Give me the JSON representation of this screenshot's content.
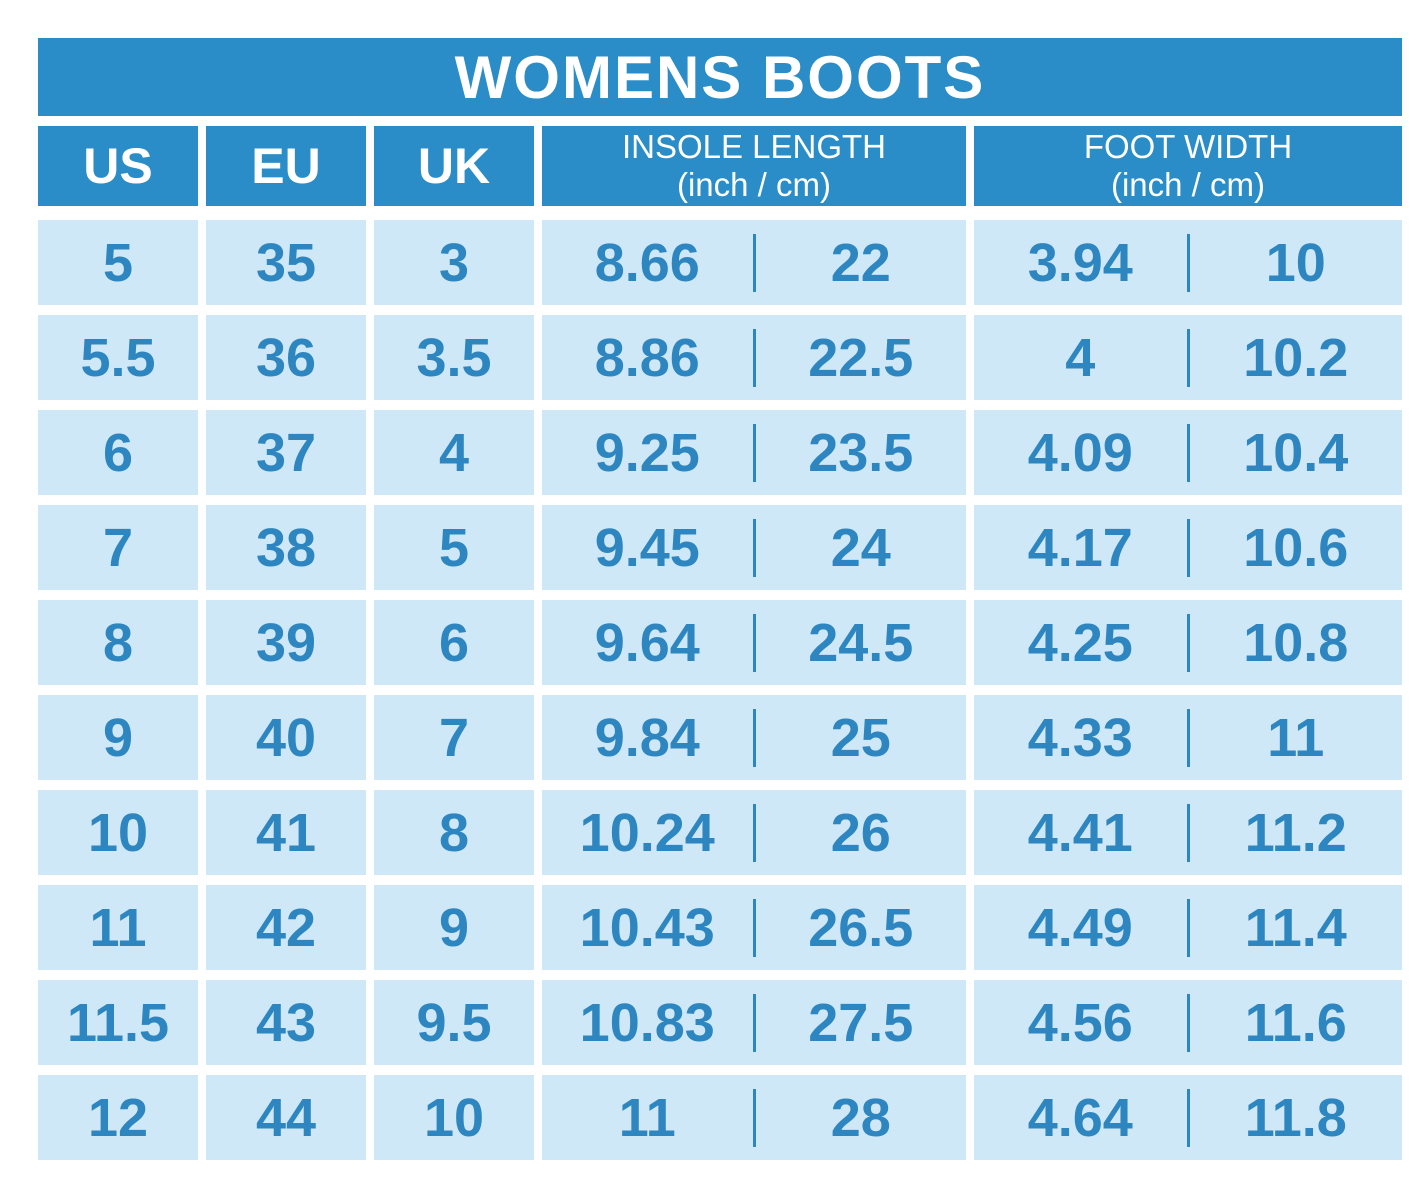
{
  "title": "WOMENS BOOTS",
  "colors": {
    "header_bg": "#2b8dc7",
    "cell_bg": "#cfe8f7",
    "value_text": "#2e86c1",
    "header_text": "#ffffff",
    "page_bg": "#ffffff"
  },
  "table": {
    "headers": {
      "us": "US",
      "eu": "EU",
      "uk": "UK",
      "insole_label": "INSOLE LENGTH",
      "insole_sub": "(inch / cm)",
      "foot_label": "FOOT WIDTH",
      "foot_sub": "(inch / cm)"
    },
    "rows": [
      {
        "us": "5",
        "eu": "35",
        "uk": "3",
        "insole_inch": "8.66",
        "insole_cm": "22",
        "width_inch": "3.94",
        "width_cm": "10"
      },
      {
        "us": "5.5",
        "eu": "36",
        "uk": "3.5",
        "insole_inch": "8.86",
        "insole_cm": "22.5",
        "width_inch": "4",
        "width_cm": "10.2"
      },
      {
        "us": "6",
        "eu": "37",
        "uk": "4",
        "insole_inch": "9.25",
        "insole_cm": "23.5",
        "width_inch": "4.09",
        "width_cm": "10.4"
      },
      {
        "us": "7",
        "eu": "38",
        "uk": "5",
        "insole_inch": "9.45",
        "insole_cm": "24",
        "width_inch": "4.17",
        "width_cm": "10.6"
      },
      {
        "us": "8",
        "eu": "39",
        "uk": "6",
        "insole_inch": "9.64",
        "insole_cm": "24.5",
        "width_inch": "4.25",
        "width_cm": "10.8"
      },
      {
        "us": "9",
        "eu": "40",
        "uk": "7",
        "insole_inch": "9.84",
        "insole_cm": "25",
        "width_inch": "4.33",
        "width_cm": "11"
      },
      {
        "us": "10",
        "eu": "41",
        "uk": "8",
        "insole_inch": "10.24",
        "insole_cm": "26",
        "width_inch": "4.41",
        "width_cm": "11.2"
      },
      {
        "us": "11",
        "eu": "42",
        "uk": "9",
        "insole_inch": "10.43",
        "insole_cm": "26.5",
        "width_inch": "4.49",
        "width_cm": "11.4"
      },
      {
        "us": "11.5",
        "eu": "43",
        "uk": "9.5",
        "insole_inch": "10.83",
        "insole_cm": "27.5",
        "width_inch": "4.56",
        "width_cm": "11.6"
      },
      {
        "us": "12",
        "eu": "44",
        "uk": "10",
        "insole_inch": "11",
        "insole_cm": "28",
        "width_inch": "4.64",
        "width_cm": "11.8"
      }
    ]
  },
  "chart_data": {
    "type": "table",
    "title": "WOMENS BOOTS",
    "columns": [
      "US",
      "EU",
      "UK",
      "INSOLE LENGTH (inch)",
      "INSOLE LENGTH (cm)",
      "FOOT WIDTH (inch)",
      "FOOT WIDTH (cm)"
    ],
    "rows": [
      [
        5,
        35,
        3,
        8.66,
        22,
        3.94,
        10
      ],
      [
        5.5,
        36,
        3.5,
        8.86,
        22.5,
        4,
        10.2
      ],
      [
        6,
        37,
        4,
        9.25,
        23.5,
        4.09,
        10.4
      ],
      [
        7,
        38,
        5,
        9.45,
        24,
        4.17,
        10.6
      ],
      [
        8,
        39,
        6,
        9.64,
        24.5,
        4.25,
        10.8
      ],
      [
        9,
        40,
        7,
        9.84,
        25,
        4.33,
        11
      ],
      [
        10,
        41,
        8,
        10.24,
        26,
        4.41,
        11.2
      ],
      [
        11,
        42,
        9,
        10.43,
        26.5,
        4.49,
        11.4
      ],
      [
        11.5,
        43,
        9.5,
        10.83,
        27.5,
        4.56,
        11.6
      ],
      [
        12,
        44,
        10,
        11,
        28,
        4.64,
        11.8
      ]
    ]
  }
}
